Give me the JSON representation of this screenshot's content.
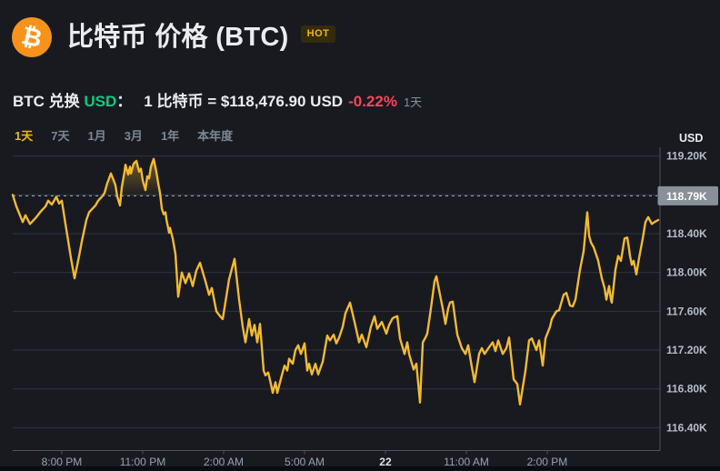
{
  "header": {
    "logo_symbol": "₿",
    "title": "比特币 价格 (BTC)",
    "hot_badge": "HOT"
  },
  "subheader": {
    "pair_prefix": "BTC 兑换 ",
    "quote_currency": "USD",
    "colon": "：",
    "rate_text": "1 比特币 = $118,476.90 USD",
    "change_percent": "-0.22%",
    "period_label": "1天"
  },
  "range_tabs": [
    {
      "id": "1d",
      "label": "1天",
      "active": true
    },
    {
      "id": "7d",
      "label": "7天",
      "active": false
    },
    {
      "id": "1m",
      "label": "1月",
      "active": false
    },
    {
      "id": "3m",
      "label": "3月",
      "active": false
    },
    {
      "id": "1y",
      "label": "1年",
      "active": false
    },
    {
      "id": "ytd",
      "label": "本年度",
      "active": false
    }
  ],
  "colors": {
    "background": "#181a20",
    "accent_yellow": "#f0b90b",
    "line_yellow": "#f3ba2f",
    "green": "#0ecb81",
    "red": "#f6465d",
    "muted_text": "#848e9c",
    "axis_label": "#b7bdc6",
    "price_badge_bg": "#8a9099"
  },
  "chart_data": {
    "type": "line",
    "series_name": "BTC/USD price (1天)",
    "y_axis_title": "USD",
    "ylim": [
      116.165,
      119.29
    ],
    "grid": true,
    "line_color": "#f3ba2f",
    "current_price": {
      "value": 118.79,
      "label": "118.79K"
    },
    "y_ticks": [
      {
        "value": 119.2,
        "label": "119.20K"
      },
      {
        "value": 118.8,
        "label": ""
      },
      {
        "value": 118.4,
        "label": "118.40K"
      },
      {
        "value": 118.0,
        "label": "118.00K"
      },
      {
        "value": 117.6,
        "label": "117.60K"
      },
      {
        "value": 117.2,
        "label": "117.20K"
      },
      {
        "value": 116.8,
        "label": "116.80K"
      },
      {
        "value": 116.4,
        "label": "116.40K"
      }
    ],
    "x_ticks": [
      {
        "t": 0.0758,
        "label": "8:00 PM",
        "emphasis": false
      },
      {
        "t": 0.2008,
        "label": "11:00 PM",
        "emphasis": false
      },
      {
        "t": 0.3258,
        "label": "2:00 AM",
        "emphasis": false
      },
      {
        "t": 0.4508,
        "label": "5:00 AM",
        "emphasis": false
      },
      {
        "t": 0.5758,
        "label": "22",
        "emphasis": true
      },
      {
        "t": 0.7008,
        "label": "11:00 AM",
        "emphasis": false
      },
      {
        "t": 0.8258,
        "label": "2:00 PM",
        "emphasis": false
      }
    ],
    "points": [
      [
        0.0,
        118.8
      ],
      [
        0.0056,
        118.68
      ],
      [
        0.0154,
        118.52
      ],
      [
        0.0197,
        118.59
      ],
      [
        0.0267,
        118.5
      ],
      [
        0.0365,
        118.57
      ],
      [
        0.0435,
        118.63
      ],
      [
        0.0506,
        118.68
      ],
      [
        0.0548,
        118.74
      ],
      [
        0.0604,
        118.7
      ],
      [
        0.0674,
        118.78
      ],
      [
        0.0716,
        118.71
      ],
      [
        0.0758,
        118.74
      ],
      [
        0.0815,
        118.5
      ],
      [
        0.0899,
        118.15
      ],
      [
        0.0955,
        117.94
      ],
      [
        0.1025,
        118.17
      ],
      [
        0.1067,
        118.32
      ],
      [
        0.1138,
        118.54
      ],
      [
        0.118,
        118.62
      ],
      [
        0.1236,
        118.66
      ],
      [
        0.1278,
        118.69
      ],
      [
        0.132,
        118.74
      ],
      [
        0.1376,
        118.78
      ],
      [
        0.1419,
        118.82
      ],
      [
        0.1461,
        118.92
      ],
      [
        0.1517,
        119.02
      ],
      [
        0.1559,
        118.95
      ],
      [
        0.1587,
        118.9
      ],
      [
        0.1615,
        118.78
      ],
      [
        0.1657,
        118.69
      ],
      [
        0.1685,
        118.88
      ],
      [
        0.1727,
        119.04
      ],
      [
        0.1742,
        119.11
      ],
      [
        0.1784,
        119.01
      ],
      [
        0.1812,
        119.09
      ],
      [
        0.1826,
        119.02
      ],
      [
        0.1868,
        119.12
      ],
      [
        0.191,
        119.15
      ],
      [
        0.1952,
        119.04
      ],
      [
        0.198,
        119.07
      ],
      [
        0.2008,
        118.95
      ],
      [
        0.2051,
        118.85
      ],
      [
        0.2079,
        118.99
      ],
      [
        0.2107,
        118.97
      ],
      [
        0.2135,
        119.09
      ],
      [
        0.2177,
        119.17
      ],
      [
        0.2219,
        119.04
      ],
      [
        0.2247,
        118.92
      ],
      [
        0.2275,
        118.82
      ],
      [
        0.2303,
        118.66
      ],
      [
        0.2331,
        118.6
      ],
      [
        0.236,
        118.62
      ],
      [
        0.2374,
        118.55
      ],
      [
        0.2416,
        118.41
      ],
      [
        0.243,
        118.46
      ],
      [
        0.2472,
        118.35
      ],
      [
        0.2514,
        118.19
      ],
      [
        0.2556,
        117.75
      ],
      [
        0.2612,
        118.0
      ],
      [
        0.2669,
        117.89
      ],
      [
        0.2725,
        117.99
      ],
      [
        0.2781,
        117.86
      ],
      [
        0.2837,
        118.02
      ],
      [
        0.2893,
        118.1
      ],
      [
        0.2978,
        117.91
      ],
      [
        0.3034,
        117.77
      ],
      [
        0.3076,
        117.84
      ],
      [
        0.3146,
        117.6
      ],
      [
        0.3202,
        117.55
      ],
      [
        0.3244,
        117.52
      ],
      [
        0.3343,
        117.93
      ],
      [
        0.3427,
        118.14
      ],
      [
        0.3497,
        117.72
      ],
      [
        0.3553,
        117.44
      ],
      [
        0.3596,
        117.28
      ],
      [
        0.3652,
        117.52
      ],
      [
        0.3694,
        117.35
      ],
      [
        0.3736,
        117.46
      ],
      [
        0.3778,
        117.28
      ],
      [
        0.382,
        117.47
      ],
      [
        0.3876,
        116.99
      ],
      [
        0.3904,
        116.94
      ],
      [
        0.3947,
        116.97
      ],
      [
        0.3989,
        116.85
      ],
      [
        0.4017,
        116.76
      ],
      [
        0.4059,
        116.87
      ],
      [
        0.4087,
        116.76
      ],
      [
        0.4157,
        116.94
      ],
      [
        0.4199,
        117.04
      ],
      [
        0.4242,
        116.99
      ],
      [
        0.427,
        117.11
      ],
      [
        0.4326,
        117.06
      ],
      [
        0.4368,
        117.2
      ],
      [
        0.441,
        117.25
      ],
      [
        0.4452,
        117.16
      ],
      [
        0.4508,
        117.27
      ],
      [
        0.4551,
        116.99
      ],
      [
        0.4579,
        117.06
      ],
      [
        0.4621,
        116.95
      ],
      [
        0.4677,
        117.06
      ],
      [
        0.4719,
        116.95
      ],
      [
        0.4789,
        117.08
      ],
      [
        0.486,
        117.35
      ],
      [
        0.4902,
        117.3
      ],
      [
        0.4958,
        117.36
      ],
      [
        0.5,
        117.27
      ],
      [
        0.5042,
        117.33
      ],
      [
        0.5098,
        117.44
      ],
      [
        0.514,
        117.58
      ],
      [
        0.5211,
        117.69
      ],
      [
        0.5281,
        117.49
      ],
      [
        0.5351,
        117.28
      ],
      [
        0.5393,
        117.36
      ],
      [
        0.5464,
        117.23
      ],
      [
        0.5534,
        117.44
      ],
      [
        0.559,
        117.55
      ],
      [
        0.5632,
        117.42
      ],
      [
        0.5702,
        117.49
      ],
      [
        0.5772,
        117.37
      ],
      [
        0.5815,
        117.46
      ],
      [
        0.5871,
        117.53
      ],
      [
        0.5941,
        117.55
      ],
      [
        0.5983,
        117.32
      ],
      [
        0.6054,
        117.16
      ],
      [
        0.6096,
        117.28
      ],
      [
        0.6124,
        117.16
      ],
      [
        0.6194,
        117.0
      ],
      [
        0.6236,
        117.06
      ],
      [
        0.6292,
        116.66
      ],
      [
        0.6335,
        117.28
      ],
      [
        0.6376,
        117.33
      ],
      [
        0.6404,
        117.37
      ],
      [
        0.6461,
        117.63
      ],
      [
        0.6517,
        117.91
      ],
      [
        0.6545,
        117.96
      ],
      [
        0.6601,
        117.77
      ],
      [
        0.6643,
        117.63
      ],
      [
        0.6685,
        117.47
      ],
      [
        0.6728,
        117.63
      ],
      [
        0.6756,
        117.69
      ],
      [
        0.6798,
        117.7
      ],
      [
        0.6868,
        117.36
      ],
      [
        0.6938,
        117.22
      ],
      [
        0.6994,
        117.16
      ],
      [
        0.7037,
        117.25
      ],
      [
        0.7079,
        117.08
      ],
      [
        0.7135,
        116.87
      ],
      [
        0.7205,
        117.16
      ],
      [
        0.7247,
        117.22
      ],
      [
        0.7289,
        117.16
      ],
      [
        0.736,
        117.23
      ],
      [
        0.7416,
        117.28
      ],
      [
        0.7458,
        117.19
      ],
      [
        0.75,
        117.3
      ],
      [
        0.757,
        117.16
      ],
      [
        0.7626,
        117.22
      ],
      [
        0.7669,
        117.33
      ],
      [
        0.7739,
        116.9
      ],
      [
        0.7795,
        116.85
      ],
      [
        0.7837,
        116.64
      ],
      [
        0.7921,
        116.99
      ],
      [
        0.7978,
        117.3
      ],
      [
        0.802,
        117.32
      ],
      [
        0.809,
        117.2
      ],
      [
        0.8132,
        117.3
      ],
      [
        0.8188,
        117.04
      ],
      [
        0.823,
        117.32
      ],
      [
        0.8301,
        117.44
      ],
      [
        0.8329,
        117.52
      ],
      [
        0.8399,
        117.6
      ],
      [
        0.8441,
        117.61
      ],
      [
        0.8511,
        117.77
      ],
      [
        0.8553,
        117.79
      ],
      [
        0.861,
        117.66
      ],
      [
        0.8652,
        117.65
      ],
      [
        0.8694,
        117.72
      ],
      [
        0.8764,
        118.03
      ],
      [
        0.882,
        118.22
      ],
      [
        0.8876,
        118.62
      ],
      [
        0.8904,
        118.38
      ],
      [
        0.8933,
        118.31
      ],
      [
        0.8975,
        118.26
      ],
      [
        0.9031,
        118.15
      ],
      [
        0.9045,
        118.12
      ],
      [
        0.9101,
        117.94
      ],
      [
        0.9143,
        117.84
      ],
      [
        0.9171,
        117.72
      ],
      [
        0.9213,
        117.86
      ],
      [
        0.9242,
        117.72
      ],
      [
        0.9256,
        117.69
      ],
      [
        0.9312,
        118.03
      ],
      [
        0.9354,
        118.17
      ],
      [
        0.9396,
        118.12
      ],
      [
        0.9452,
        118.35
      ],
      [
        0.9494,
        118.36
      ],
      [
        0.9522,
        118.24
      ],
      [
        0.9536,
        118.17
      ],
      [
        0.9565,
        118.08
      ],
      [
        0.9593,
        118.12
      ],
      [
        0.9635,
        117.98
      ],
      [
        0.9677,
        118.15
      ],
      [
        0.9733,
        118.35
      ],
      [
        0.9775,
        118.52
      ],
      [
        0.9817,
        118.57
      ],
      [
        0.9874,
        118.5
      ],
      [
        0.9916,
        118.52
      ],
      [
        0.9972,
        118.54
      ]
    ]
  }
}
